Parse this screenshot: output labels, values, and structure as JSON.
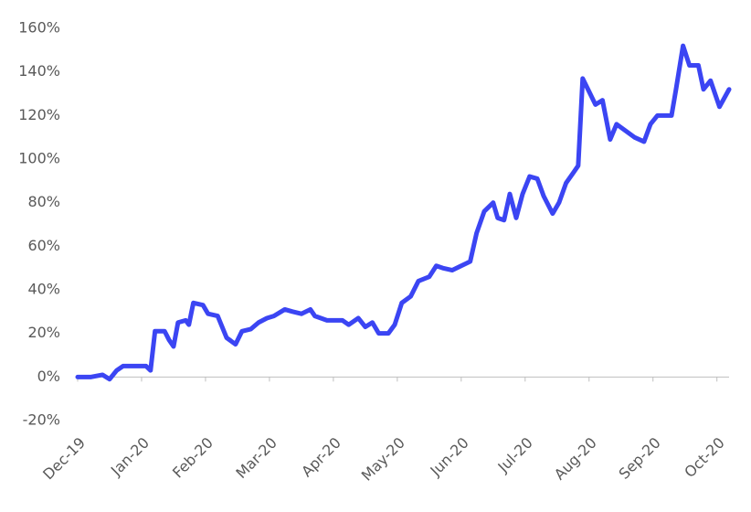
{
  "chart_data": {
    "type": "line",
    "x": [
      0,
      0.21,
      0.39,
      0.5,
      0.61,
      0.71,
      1.07,
      1.14,
      1.21,
      1.36,
      1.43,
      1.5,
      1.57,
      1.69,
      1.74,
      1.81,
      1.96,
      2.04,
      2.19,
      2.33,
      2.47,
      2.57,
      2.71,
      2.83,
      2.96,
      3.07,
      3.24,
      3.36,
      3.5,
      3.64,
      3.71,
      3.9,
      4.14,
      4.24,
      4.39,
      4.5,
      4.61,
      4.71,
      4.86,
      4.96,
      5.07,
      5.21,
      5.33,
      5.5,
      5.61,
      5.71,
      5.86,
      6.0,
      6.14,
      6.24,
      6.36,
      6.5,
      6.57,
      6.67,
      6.76,
      6.86,
      6.96,
      7.07,
      7.19,
      7.29,
      7.43,
      7.53,
      7.64,
      7.76,
      7.83,
      7.9,
      8.0,
      8.1,
      8.21,
      8.33,
      8.43,
      8.57,
      8.71,
      8.86,
      8.96,
      9.07,
      9.29,
      9.36,
      9.47,
      9.57,
      9.71,
      9.79,
      9.9,
      10.04,
      10.19
    ],
    "series": [
      {
        "color": "#3b45f3",
        "values": [
          0,
          0,
          1,
          -1,
          3,
          5,
          5,
          3,
          21,
          21,
          17,
          14,
          25,
          26,
          24,
          34,
          33,
          29,
          28,
          18,
          15,
          21,
          22,
          25,
          27,
          28,
          31,
          30,
          29,
          31,
          28,
          26,
          26,
          24,
          27,
          23,
          25,
          20,
          20,
          24,
          34,
          37,
          44,
          46,
          51,
          50,
          49,
          51,
          53,
          66,
          76,
          80,
          73,
          72,
          84,
          73,
          84,
          92,
          91,
          83,
          75,
          80,
          89,
          94,
          97,
          137,
          131,
          125,
          127,
          109,
          116,
          113,
          110,
          108,
          116,
          120,
          120,
          132,
          152,
          143,
          143,
          132,
          136,
          124,
          132
        ]
      }
    ],
    "xlim": [
      0,
      10.19
    ],
    "xticks": [
      {
        "value": 0,
        "label": "Dec-19"
      },
      {
        "value": 1,
        "label": "Jan-20"
      },
      {
        "value": 2,
        "label": "Feb-20"
      },
      {
        "value": 3,
        "label": "Mar-20"
      },
      {
        "value": 4,
        "label": "Apr-20"
      },
      {
        "value": 5,
        "label": "May-20"
      },
      {
        "value": 6,
        "label": "Jun-20"
      },
      {
        "value": 7,
        "label": "Jul-20"
      },
      {
        "value": 8,
        "label": "Aug-20"
      },
      {
        "value": 9,
        "label": "Sep-20"
      },
      {
        "value": 10,
        "label": "Oct-20"
      }
    ],
    "ylim": [
      -20,
      160
    ],
    "yticks": [
      {
        "value": -20,
        "label": "-20%"
      },
      {
        "value": 0,
        "label": "0%"
      },
      {
        "value": 20,
        "label": "20%"
      },
      {
        "value": 40,
        "label": "40%"
      },
      {
        "value": 60,
        "label": "60%"
      },
      {
        "value": 80,
        "label": "80%"
      },
      {
        "value": 100,
        "label": "100%"
      },
      {
        "value": 120,
        "label": "120%"
      },
      {
        "value": 140,
        "label": "140%"
      },
      {
        "value": 160,
        "label": "160%"
      }
    ],
    "grid": false
  }
}
